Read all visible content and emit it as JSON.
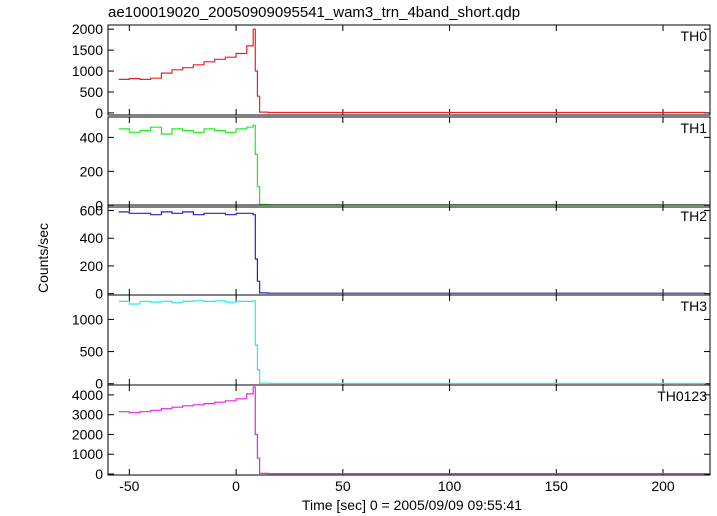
{
  "chart_data": {
    "type": "line",
    "title": "ae100019020_20050909095541_wam3_trn_4band_short.qdp",
    "xlabel": "Time [sec] 0 = 2005/09/09 09:55:41",
    "ylabel": "Counts/sec",
    "xlim": [
      -60,
      222
    ],
    "xticks": [
      -50,
      0,
      50,
      100,
      150,
      200
    ],
    "panels": [
      {
        "label": "TH0",
        "color": "#ee2222",
        "ylim": [
          -50,
          2100
        ],
        "yticks": [
          0,
          500,
          1000,
          1500,
          2000
        ],
        "series": {
          "x": [
            -55,
            -50,
            -45,
            -40,
            -35,
            -30,
            -25,
            -20,
            -15,
            -10,
            -5,
            0,
            5,
            8,
            9,
            10,
            11,
            15,
            50,
            100,
            150,
            200,
            220
          ],
          "y": [
            800,
            820,
            800,
            830,
            950,
            1030,
            1080,
            1150,
            1220,
            1280,
            1330,
            1420,
            1600,
            2000,
            1000,
            400,
            20,
            10,
            10,
            10,
            10,
            10,
            10
          ]
        }
      },
      {
        "label": "TH1",
        "color": "#22ee22",
        "ylim": [
          -10,
          520
        ],
        "yticks": [
          0,
          200,
          400
        ],
        "series": {
          "x": [
            -55,
            -50,
            -45,
            -40,
            -35,
            -30,
            -25,
            -20,
            -15,
            -10,
            -5,
            0,
            5,
            8,
            9,
            10,
            11,
            15,
            50,
            100,
            150,
            200,
            220
          ],
          "y": [
            450,
            430,
            440,
            460,
            420,
            450,
            440,
            430,
            450,
            440,
            430,
            450,
            460,
            470,
            300,
            110,
            5,
            3,
            3,
            3,
            3,
            3,
            3
          ]
        }
      },
      {
        "label": "TH2",
        "color": "#2222cc",
        "ylim": [
          -10,
          640
        ],
        "yticks": [
          0,
          200,
          400,
          600
        ],
        "series": {
          "x": [
            -55,
            -50,
            -45,
            -40,
            -35,
            -30,
            -25,
            -20,
            -15,
            -10,
            -5,
            0,
            5,
            8,
            9,
            10,
            11,
            15,
            50,
            100,
            150,
            200,
            220
          ],
          "y": [
            590,
            580,
            580,
            570,
            590,
            580,
            590,
            570,
            580,
            580,
            570,
            580,
            580,
            570,
            250,
            90,
            5,
            3,
            3,
            3,
            3,
            3,
            3
          ]
        }
      },
      {
        "label": "TH3",
        "color": "#22eeee",
        "ylim": [
          -20,
          1380
        ],
        "yticks": [
          0,
          500,
          1000
        ],
        "series": {
          "x": [
            -55,
            -50,
            -45,
            -40,
            -35,
            -30,
            -25,
            -20,
            -15,
            -10,
            -5,
            0,
            5,
            8,
            9,
            10,
            11,
            15,
            50,
            100,
            150,
            200,
            220
          ],
          "y": [
            1280,
            1240,
            1280,
            1270,
            1280,
            1260,
            1280,
            1290,
            1280,
            1290,
            1270,
            1280,
            1280,
            1290,
            600,
            220,
            10,
            5,
            5,
            5,
            5,
            5,
            5
          ]
        }
      },
      {
        "label": "TH0123",
        "color": "#ee22ee",
        "ylim": [
          -50,
          4500
        ],
        "yticks": [
          0,
          1000,
          2000,
          3000,
          4000
        ],
        "series": {
          "x": [
            -55,
            -50,
            -45,
            -40,
            -35,
            -30,
            -25,
            -20,
            -15,
            -10,
            -5,
            0,
            5,
            8,
            9,
            10,
            11,
            15,
            50,
            100,
            150,
            200,
            220
          ],
          "y": [
            3150,
            3100,
            3150,
            3220,
            3300,
            3380,
            3450,
            3500,
            3560,
            3630,
            3700,
            3800,
            4050,
            4400,
            2000,
            800,
            30,
            20,
            20,
            20,
            20,
            20,
            20
          ]
        }
      }
    ]
  }
}
